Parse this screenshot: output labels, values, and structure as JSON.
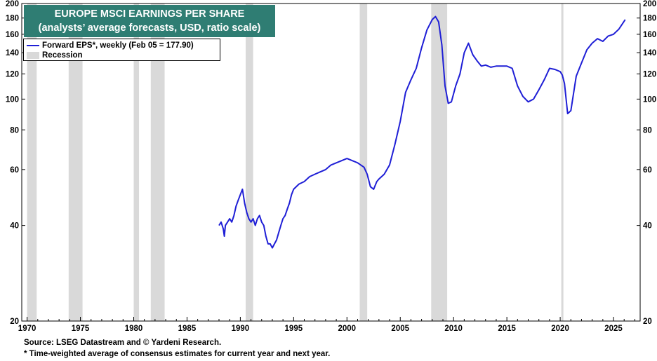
{
  "title_lines": [
    "EUROPE MSCI EARNINGS PER SHARE",
    "(analysts’ average forecasts, USD, ratio scale)"
  ],
  "legend": {
    "series_label": "Forward EPS*, weekly (Feb 05 = 177.90)",
    "recession_label": "Recession"
  },
  "footnotes": {
    "source": "Source: LSEG Datastream and © Yardeni Research.",
    "note": "* Time-weighted average of consensus estimates for current year and next year."
  },
  "colors": {
    "line": "#1f1fd6",
    "title_bg": "#2f7d73",
    "recession": "#d9d9d9"
  },
  "chart_data": {
    "type": "line",
    "title": "EUROPE MSCI EARNINGS PER SHARE",
    "subtitle": "(analysts’ average forecasts, USD, ratio scale)",
    "yscale": "log",
    "xlim": [
      1969.5,
      2027.5
    ],
    "ylim": [
      20,
      200
    ],
    "x_ticks": [
      1970,
      1975,
      1980,
      1985,
      1990,
      1995,
      2000,
      2005,
      2010,
      2015,
      2020,
      2025
    ],
    "y_ticks": [
      20,
      40,
      60,
      80,
      100,
      120,
      140,
      160,
      180,
      200
    ],
    "recessions": [
      [
        1970.0,
        1970.9
      ],
      [
        1973.9,
        1975.2
      ],
      [
        1980.0,
        1980.5
      ],
      [
        1981.6,
        1982.9
      ],
      [
        1990.5,
        1991.2
      ],
      [
        2001.2,
        2001.9
      ],
      [
        2007.9,
        2009.4
      ],
      [
        2020.1,
        2020.3
      ]
    ],
    "series": [
      {
        "name": "Forward EPS*, weekly (Feb 05 = 177.90)",
        "x": [
          1988.0,
          1988.2,
          1988.4,
          1988.5,
          1988.6,
          1988.8,
          1989.0,
          1989.2,
          1989.4,
          1989.6,
          1989.8,
          1990.0,
          1990.2,
          1990.4,
          1990.6,
          1990.8,
          1991.0,
          1991.2,
          1991.4,
          1991.6,
          1991.8,
          1992.0,
          1992.2,
          1992.4,
          1992.6,
          1992.8,
          1993.0,
          1993.2,
          1993.4,
          1993.6,
          1993.8,
          1994.0,
          1994.2,
          1994.4,
          1994.6,
          1994.8,
          1995.0,
          1995.5,
          1996.0,
          1996.5,
          1997.0,
          1997.5,
          1998.0,
          1998.5,
          1999.0,
          1999.5,
          2000.0,
          2000.5,
          2001.0,
          2001.3,
          2001.6,
          2001.9,
          2002.2,
          2002.5,
          2002.8,
          2003.0,
          2003.5,
          2004.0,
          2004.5,
          2005.0,
          2005.5,
          2006.0,
          2006.5,
          2007.0,
          2007.5,
          2008.0,
          2008.3,
          2008.6,
          2008.9,
          2009.2,
          2009.5,
          2009.8,
          2010.2,
          2010.6,
          2011.0,
          2011.4,
          2011.8,
          2012.2,
          2012.6,
          2013.0,
          2013.5,
          2014.0,
          2014.5,
          2015.0,
          2015.5,
          2016.0,
          2016.5,
          2017.0,
          2017.5,
          2018.0,
          2018.5,
          2019.0,
          2019.5,
          2020.0,
          2020.2,
          2020.4,
          2020.7,
          2021.0,
          2021.5,
          2022.0,
          2022.5,
          2023.0,
          2023.5,
          2024.0,
          2024.5,
          2025.0,
          2025.5,
          2026.1
        ],
        "values": [
          40,
          41,
          39,
          37,
          40,
          41,
          42,
          41,
          43,
          46,
          48,
          50,
          52,
          47,
          44,
          42,
          41,
          42,
          40,
          42,
          43,
          41,
          40,
          37,
          35,
          35,
          34,
          35,
          36,
          38,
          40,
          42,
          43,
          45,
          47,
          50,
          52,
          54,
          55,
          57,
          58,
          59,
          60,
          62,
          63,
          64,
          65,
          64,
          63,
          62,
          61,
          58,
          53,
          52,
          55,
          56,
          58,
          62,
          72,
          85,
          105,
          115,
          125,
          145,
          165,
          178,
          182,
          175,
          148,
          110,
          97,
          98,
          110,
          120,
          140,
          150,
          138,
          132,
          127,
          128,
          126,
          127,
          127,
          127,
          125,
          110,
          102,
          98,
          100,
          107,
          115,
          125,
          124,
          122,
          119,
          112,
          90,
          92,
          118,
          130,
          143,
          150,
          155,
          152,
          158,
          160,
          166,
          177.9
        ]
      }
    ]
  }
}
